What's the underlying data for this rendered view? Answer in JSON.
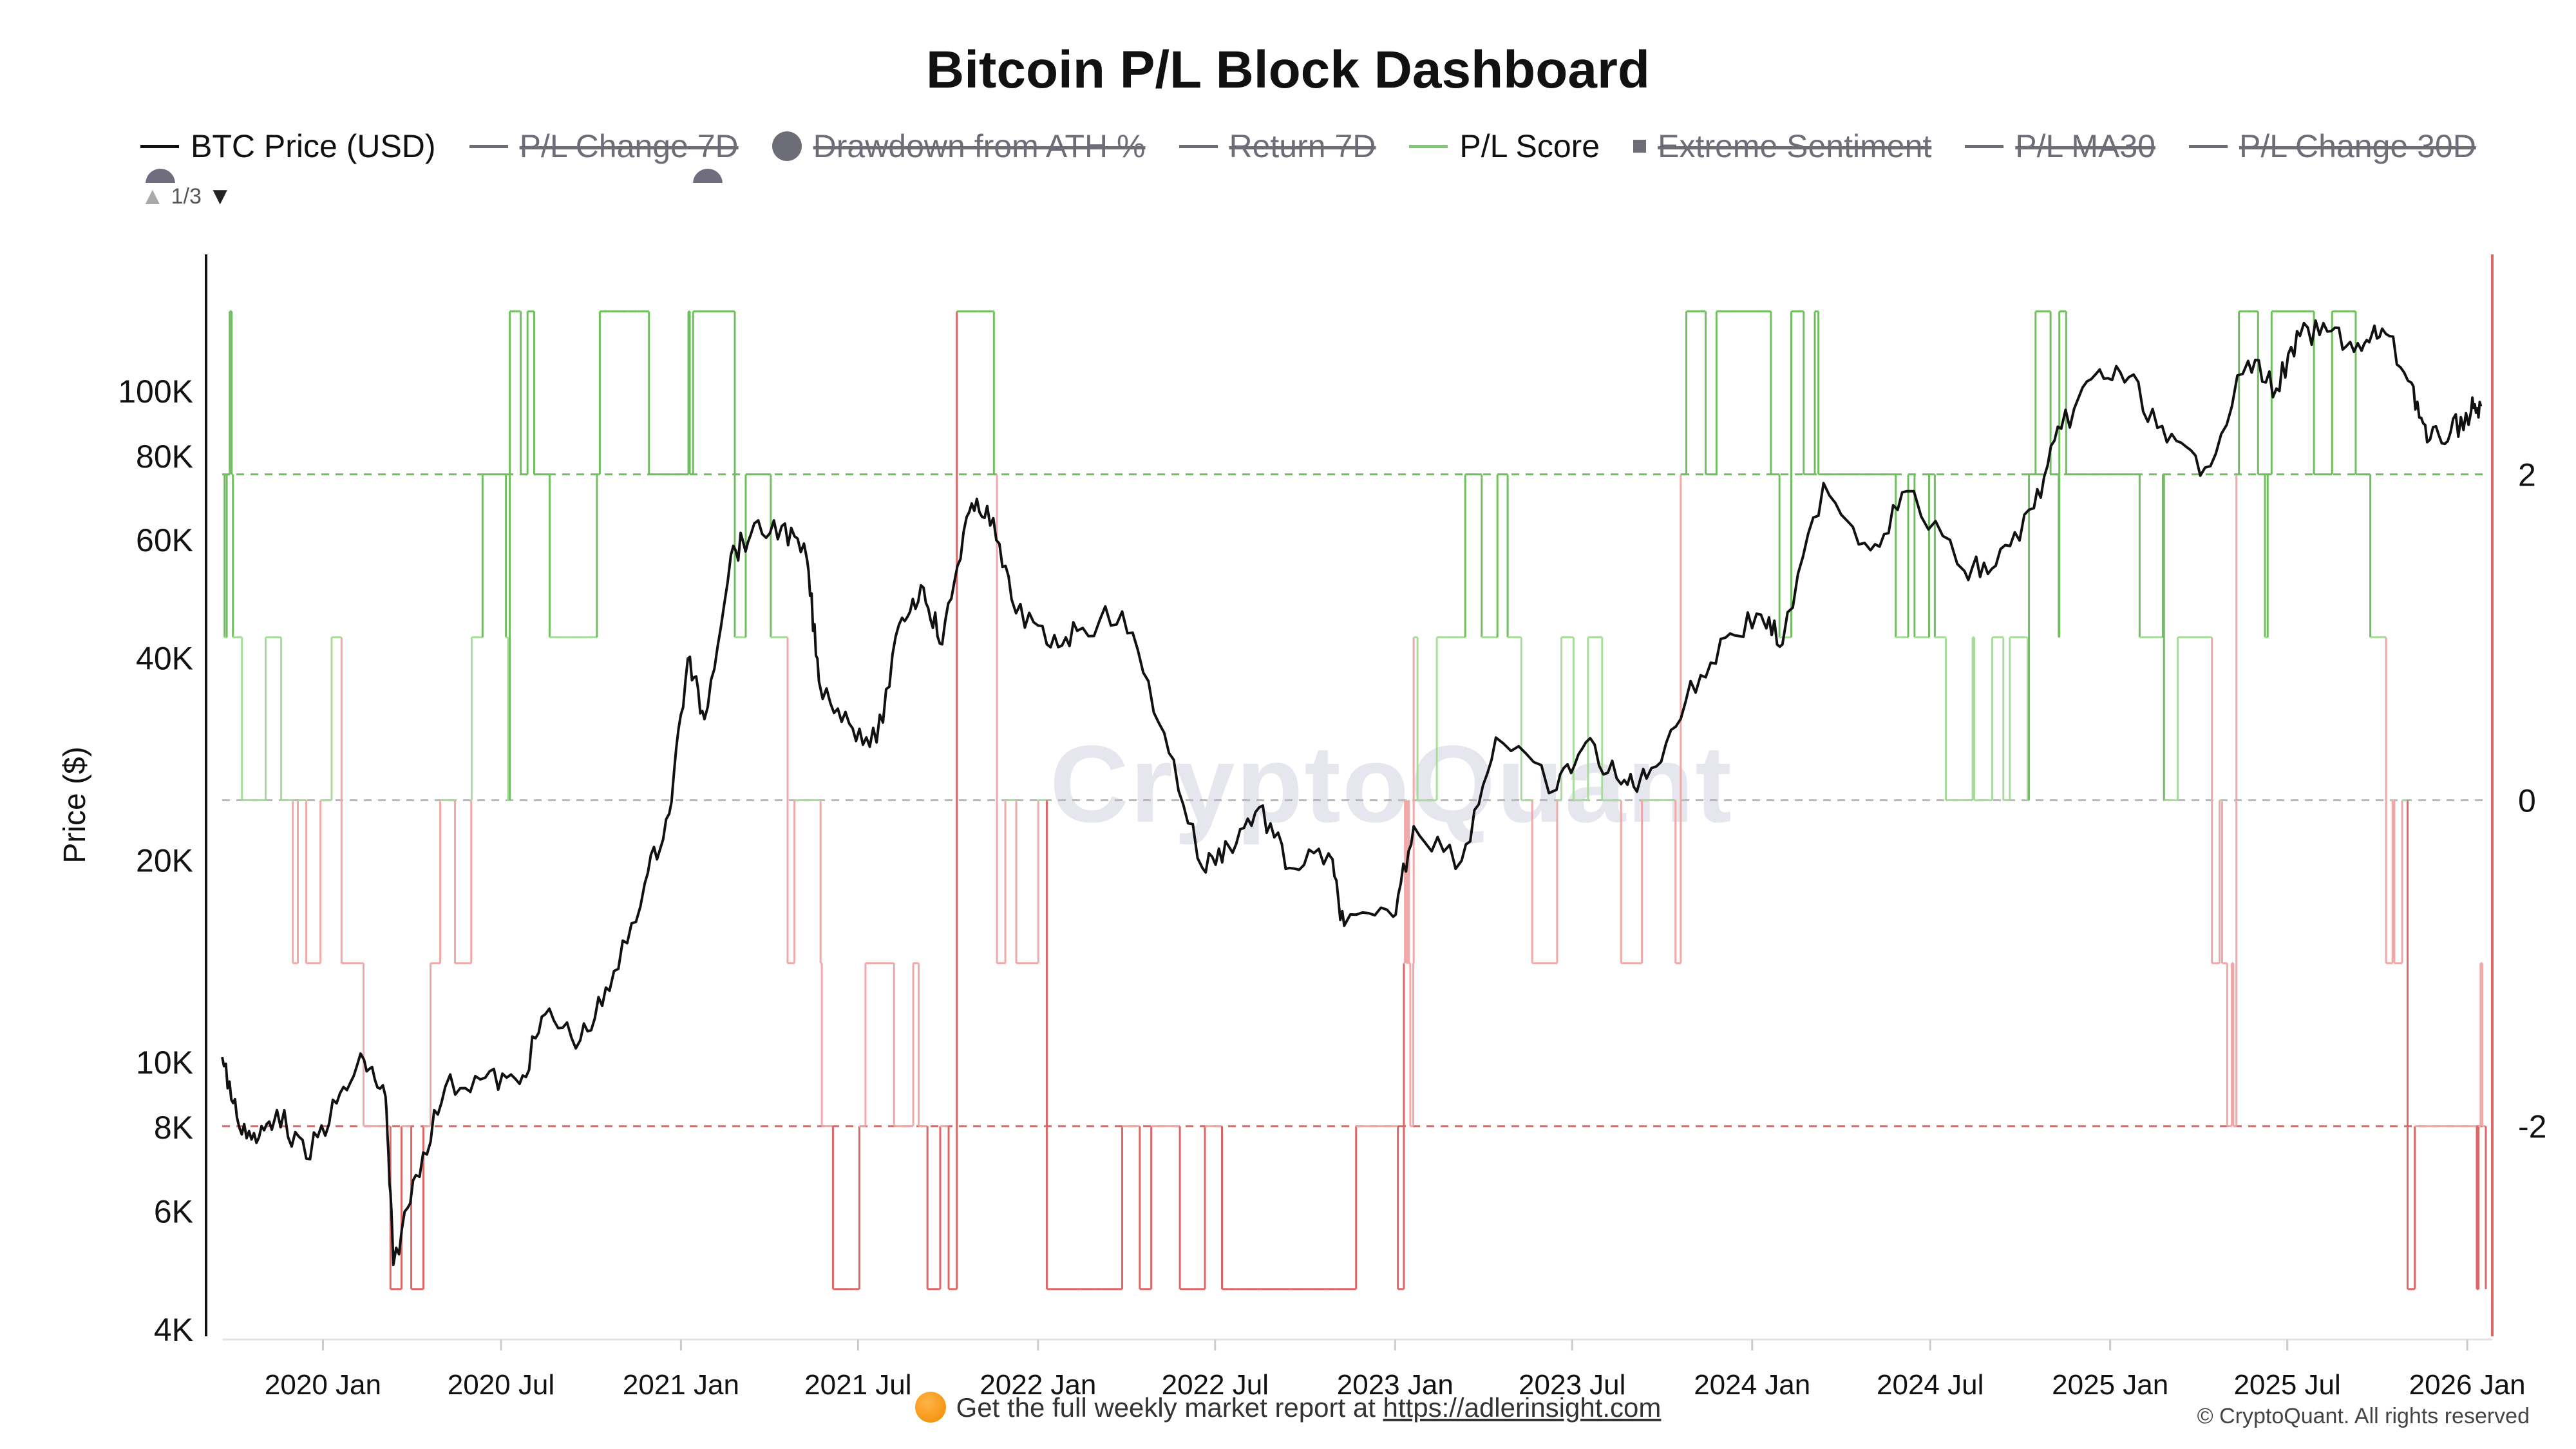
{
  "title": "Bitcoin P/L Block Dashboard",
  "legend": [
    {
      "label": "BTC Price (USD)",
      "symbol": "line",
      "color": "#111111",
      "visible": true
    },
    {
      "label": "P/L Change 7D",
      "symbol": "line",
      "color": "#6d6d78",
      "visible": false
    },
    {
      "label": "Drawdown from ATH %",
      "symbol": "dot",
      "color": "#6d6d78",
      "visible": false
    },
    {
      "label": "Return 7D",
      "symbol": "line",
      "color": "#6d6d78",
      "visible": false
    },
    {
      "label": "P/L Score",
      "symbol": "line",
      "color": "#7cc96f",
      "visible": true
    },
    {
      "label": "Extreme Sentiment",
      "symbol": "square",
      "color": "#6d6d78",
      "visible": false
    },
    {
      "label": "P/L MA30",
      "symbol": "line",
      "color": "#6d6d78",
      "visible": false
    },
    {
      "label": "P/L Change 30D",
      "symbol": "line",
      "color": "#6d6d78",
      "visible": false
    }
  ],
  "legend_pager": "1/3",
  "watermark": "CryptoQuant",
  "footer": {
    "text": "Get the full weekly market report at ",
    "link": "https://adlerinsight.com"
  },
  "copyright": "© CryptoQuant. All rights reserved",
  "colors": {
    "price": "#111111",
    "score_pos_strong": "#6fbf5e",
    "score_pos_light": "#a8dc9c",
    "score_neg_strong": "#e06666",
    "score_neg_light": "#f0a8a8",
    "ref_pos": "#6fbf5e",
    "ref_zero": "#b9b9b9",
    "ref_neg": "#e06666",
    "right_axis": "#e06666"
  },
  "chart_data": {
    "type": "line",
    "title": "Bitcoin P/L Block Dashboard",
    "x_ticks": [
      "2020 Jan",
      "2020 Jul",
      "2021 Jan",
      "2021 Jul",
      "2022 Jan",
      "2022 Jul",
      "2023 Jan",
      "2023 Jul",
      "2024 Jan",
      "2024 Jul",
      "2025 Jan",
      "2025 Jul",
      "2026 Jan"
    ],
    "x_range": [
      "2019-09-20",
      "2026-01-20"
    ],
    "y_left": {
      "label": "Price ($)",
      "scale": "log",
      "range": [
        4000,
        160000
      ],
      "ticks": [
        {
          "v": 4000,
          "t": "4K"
        },
        {
          "v": 6000,
          "t": "6K"
        },
        {
          "v": 8000,
          "t": "8K"
        },
        {
          "v": 10000,
          "t": "10K"
        },
        {
          "v": 20000,
          "t": "20K"
        },
        {
          "v": 40000,
          "t": "40K"
        },
        {
          "v": 60000,
          "t": "60K"
        },
        {
          "v": 80000,
          "t": "80K"
        },
        {
          "v": 100000,
          "t": "100K"
        }
      ]
    },
    "y_right": {
      "range": [
        -3.25,
        3.35
      ],
      "ticks": [
        {
          "v": 2,
          "t": "2"
        },
        {
          "v": 0,
          "t": "0"
        },
        {
          "v": -2,
          "t": "-2"
        }
      ]
    },
    "reference_lines": [
      2,
      0,
      -2
    ],
    "series": [
      {
        "name": "BTC Price (USD)",
        "axis": "left",
        "x": [
          "2019-09-20",
          "2019-10-05",
          "2019-10-25",
          "2019-11-15",
          "2019-12-15",
          "2020-01-15",
          "2020-02-12",
          "2020-03-05",
          "2020-03-13",
          "2020-04-05",
          "2020-05-05",
          "2020-06-15",
          "2020-07-20",
          "2020-08-15",
          "2020-09-20",
          "2020-10-20",
          "2020-11-25",
          "2020-12-20",
          "2021-01-08",
          "2021-01-25",
          "2021-02-21",
          "2021-03-13",
          "2021-04-14",
          "2021-05-10",
          "2021-05-22",
          "2021-06-22",
          "2021-07-20",
          "2021-08-15",
          "2021-09-06",
          "2021-09-25",
          "2021-10-20",
          "2021-11-10",
          "2021-12-05",
          "2022-01-10",
          "2022-02-10",
          "2022-03-28",
          "2022-05-10",
          "2022-06-18",
          "2022-07-15",
          "2022-08-15",
          "2022-09-15",
          "2022-10-25",
          "2022-11-10",
          "2022-12-30",
          "2023-01-20",
          "2023-03-10",
          "2023-04-14",
          "2023-06-15",
          "2023-07-15",
          "2023-08-20",
          "2023-09-15",
          "2023-10-25",
          "2023-12-05",
          "2024-01-10",
          "2024-02-01",
          "2024-03-14",
          "2024-05-01",
          "2024-06-07",
          "2024-08-05",
          "2024-09-06",
          "2024-10-15",
          "2024-11-12",
          "2024-12-17",
          "2025-01-20",
          "2025-02-28",
          "2025-04-08",
          "2025-05-22",
          "2025-06-20",
          "2025-07-14",
          "2025-08-15",
          "2025-09-15",
          "2025-10-06",
          "2025-11-05",
          "2025-11-21",
          "2025-12-15",
          "2026-01-05",
          "2026-01-15"
        ],
        "values": [
          10200,
          8300,
          7600,
          8500,
          7200,
          8700,
          10100,
          8900,
          5000,
          6800,
          9200,
          9500,
          9300,
          11800,
          10800,
          12800,
          18500,
          23500,
          40000,
          32500,
          57000,
          61000,
          63000,
          56000,
          37000,
          32000,
          30000,
          46000,
          51000,
          42000,
          65000,
          67500,
          49000,
          42000,
          44000,
          47000,
          31000,
          19500,
          21000,
          24000,
          19500,
          20500,
          16000,
          16500,
          22500,
          20000,
          30500,
          25500,
          30000,
          26000,
          26500,
          34500,
          43000,
          46500,
          42000,
          73000,
          58000,
          71000,
          54000,
          55000,
          67000,
          88000,
          106000,
          105000,
          84000,
          77000,
          111000,
          101000,
          121000,
          123000,
          115000,
          124000,
          103000,
          84000,
          87000,
          93500,
          95000
        ]
      },
      {
        "name": "P/L Score",
        "axis": "right",
        "values_range": [
          -3,
          3
        ],
        "levels": [
          -3,
          -2,
          -1,
          0,
          1,
          2,
          3
        ]
      }
    ]
  }
}
